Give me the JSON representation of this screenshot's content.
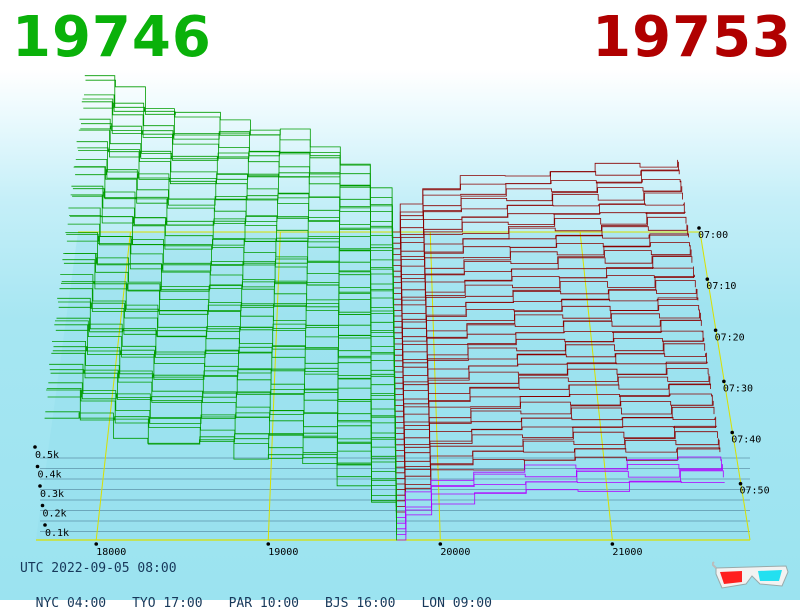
{
  "bid_price": "19746",
  "ask_price": "19753",
  "colors": {
    "bid": "#0ab10a",
    "ask": "#b00000",
    "bid_line": "#009c00",
    "ask_line": "#8a0000",
    "grid": "#d8e000",
    "floor_line": "#1a3e5e",
    "midline": "#b000ff"
  },
  "footer": {
    "utc": "UTC 2022-09-05 08:00",
    "zones": [
      "NYC 04:00",
      "TYO 17:00",
      "PAR 10:00",
      "BJS 16:00",
      "LON 09:00"
    ]
  },
  "icons": {
    "glasses": "3d-glasses-icon"
  },
  "chart_data": {
    "type": "area",
    "view": "3d-depth-history",
    "price_axis": {
      "ticks": [
        18000,
        19000,
        20000,
        21000
      ],
      "labels": [
        "18000",
        "19000",
        "20000",
        "21000"
      ],
      "range": [
        17650,
        21800
      ]
    },
    "volume_axis": {
      "ticks": [
        0.1,
        0.2,
        0.3,
        0.4,
        0.5
      ],
      "labels": [
        "0.1k",
        "0.2k",
        "0.3k",
        "0.4k",
        "0.5k"
      ],
      "unit": "k"
    },
    "time_axis": {
      "labels": [
        "07:00",
        "07:10",
        "07:20",
        "07:30",
        "07:40",
        "07:50"
      ],
      "range_min": [
        0,
        60
      ]
    },
    "bid_price": 19746,
    "ask_price": 19753,
    "series": [
      {
        "side": "bid",
        "price_levels": [
          17700,
          17900,
          18100,
          18300,
          18600,
          18800,
          19000,
          19200,
          19400,
          19600,
          19746
        ],
        "cum_volume": [
          0.66,
          0.6,
          0.55,
          0.5,
          0.48,
          0.45,
          0.42,
          0.38,
          0.3,
          0.18,
          0.0
        ]
      },
      {
        "side": "ask",
        "price_levels": [
          19753,
          19800,
          19950,
          20200,
          20500,
          20800,
          21100,
          21400,
          21650
        ],
        "cum_volume": [
          0.0,
          0.12,
          0.2,
          0.23,
          0.25,
          0.27,
          0.28,
          0.3,
          0.31
        ]
      }
    ]
  }
}
